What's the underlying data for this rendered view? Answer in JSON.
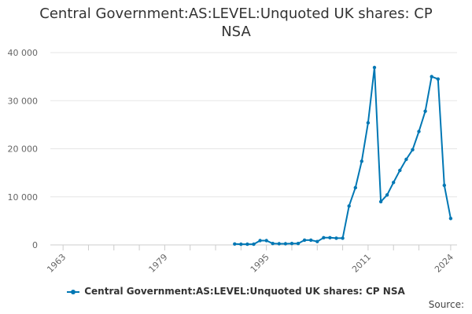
{
  "chart_data": {
    "type": "line",
    "title": "Central Government:AS:LEVEL:Unquoted UK shares: CP NSA",
    "xlabel": "",
    "ylabel": "",
    "xlim": [
      1961,
      2025
    ],
    "ylim": [
      0,
      40000
    ],
    "y_ticks": [
      0,
      10000,
      20000,
      30000,
      40000
    ],
    "y_tick_labels": [
      "0",
      "10 000",
      "20 000",
      "30 000",
      "40 000"
    ],
    "x_ticks": [
      1963,
      1979,
      1995,
      2011,
      2024
    ],
    "x_tick_labels": [
      "1963",
      "1979",
      "1995",
      "2011",
      "2024"
    ],
    "x_minor_ticks": [
      1963,
      1967,
      1971,
      1975,
      1979,
      1983,
      1987,
      1991,
      1995,
      1999,
      2003,
      2007,
      2011,
      2015,
      2019,
      2024
    ],
    "grid": true,
    "legend_position": "bottom",
    "color": "#0077b4",
    "series": [
      {
        "name": "Central Government:AS:LEVEL:Unquoted UK shares: CP NSA",
        "x": [
          1990,
          1991,
          1992,
          1993,
          1994,
          1995,
          1996,
          1997,
          1998,
          1999,
          2000,
          2001,
          2002,
          2003,
          2004,
          2005,
          2006,
          2007,
          2008,
          2009,
          2010,
          2011,
          2012,
          2013,
          2014,
          2015,
          2016,
          2017,
          2018,
          2019,
          2020,
          2021,
          2022,
          2023,
          2024
        ],
        "values": [
          200,
          150,
          150,
          150,
          900,
          900,
          300,
          250,
          250,
          300,
          300,
          1000,
          1000,
          700,
          1500,
          1500,
          1400,
          1400,
          8100,
          11900,
          17400,
          25400,
          36900,
          9000,
          10400,
          13000,
          15500,
          17800,
          19800,
          23600,
          27800,
          35000,
          34500,
          12400,
          5500
        ]
      }
    ]
  },
  "legend": {
    "label": "Central Government:AS:LEVEL:Unquoted UK shares: CP NSA"
  },
  "source": {
    "label": "Source:"
  }
}
